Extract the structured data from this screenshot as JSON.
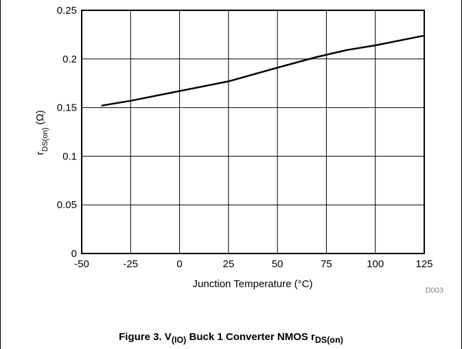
{
  "chart_data": {
    "type": "line",
    "xlabel": "Junction Temperature (°C)",
    "ylabel": {
      "base": "r",
      "sub": "DS(on)",
      "unit": " (Ω)"
    },
    "xlim": [
      -50,
      125
    ],
    "ylim": [
      0,
      0.25
    ],
    "xticks": [
      -50,
      -25,
      0,
      25,
      50,
      75,
      100,
      125
    ],
    "yticks": [
      0,
      0.05,
      0.1,
      0.15,
      0.2,
      0.25
    ],
    "xtick_labels": [
      "-50",
      "-25",
      "0",
      "25",
      "50",
      "75",
      "100",
      "125"
    ],
    "ytick_labels": [
      "0",
      "0.05",
      "0.1",
      "0.15",
      "0.2",
      "0.25"
    ],
    "grid": true,
    "series": [
      {
        "x": [
          -40,
          -25,
          0,
          25,
          50,
          70,
          85,
          100,
          125
        ],
        "y": [
          0.152,
          0.157,
          0.167,
          0.177,
          0.191,
          0.202,
          0.209,
          0.214,
          0.224
        ]
      }
    ],
    "code": "D003"
  },
  "caption": {
    "prefix": "Figure 3. V",
    "sub1": "(IO)",
    "middle": " Buck 1 Converter NMOS r",
    "sub2": "DS(on)"
  },
  "colors": {
    "line": "#000000",
    "grid": "#000000",
    "background": "#ffffff"
  }
}
